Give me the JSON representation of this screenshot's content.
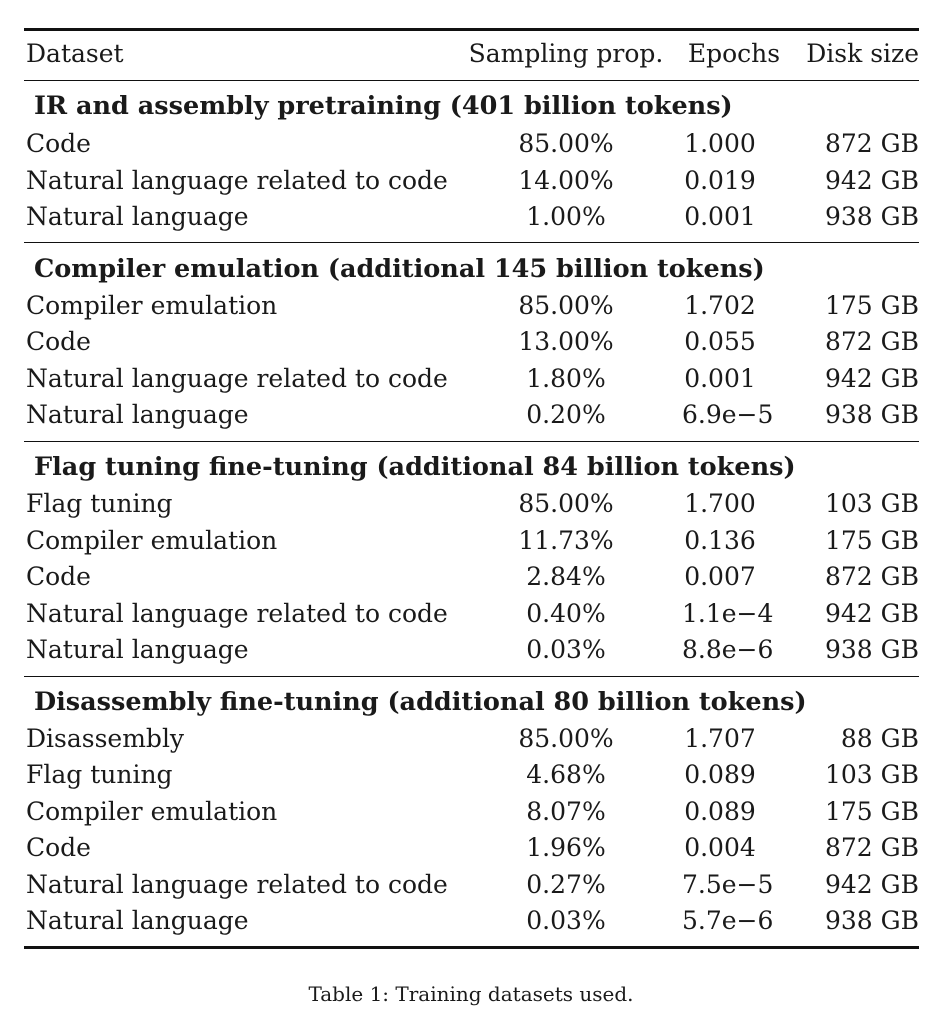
{
  "table": {
    "header": {
      "dataset": "Dataset",
      "sampling": "Sampling prop.",
      "epochs": "Epochs",
      "disk": "Disk size"
    },
    "sections": [
      {
        "title": "IR and assembly pretraining (401 billion tokens)",
        "rows": [
          {
            "dataset": "Code",
            "sampling": "85.00%",
            "epochs": "1.000",
            "disk": "872 GB"
          },
          {
            "dataset": "Natural language related to code",
            "sampling": "14.00%",
            "epochs": "0.019",
            "disk": "942 GB"
          },
          {
            "dataset": "Natural language",
            "sampling": "1.00%",
            "epochs": "0.001",
            "disk": "938 GB"
          }
        ]
      },
      {
        "title": "Compiler emulation (additional 145 billion tokens)",
        "rows": [
          {
            "dataset": "Compiler emulation",
            "sampling": "85.00%",
            "epochs": "1.702",
            "disk": "175 GB"
          },
          {
            "dataset": "Code",
            "sampling": "13.00%",
            "epochs": "0.055",
            "disk": "872 GB"
          },
          {
            "dataset": "Natural language related to code",
            "sampling": "1.80%",
            "epochs": "0.001",
            "disk": "942 GB"
          },
          {
            "dataset": "Natural language",
            "sampling": "0.20%",
            "epochs": "6.9e−5",
            "disk": "938 GB"
          }
        ]
      },
      {
        "title": "Flag tuning fine-tuning (additional 84 billion tokens)",
        "rows": [
          {
            "dataset": "Flag tuning",
            "sampling": "85.00%",
            "epochs": "1.700",
            "disk": "103 GB"
          },
          {
            "dataset": "Compiler emulation",
            "sampling": "11.73%",
            "epochs": "0.136",
            "disk": "175 GB"
          },
          {
            "dataset": "Code",
            "sampling": "2.84%",
            "epochs": "0.007",
            "disk": "872 GB"
          },
          {
            "dataset": "Natural language related to code",
            "sampling": "0.40%",
            "epochs": "1.1e−4",
            "disk": "942 GB"
          },
          {
            "dataset": "Natural language",
            "sampling": "0.03%",
            "epochs": "8.8e−6",
            "disk": "938 GB"
          }
        ]
      },
      {
        "title": "Disassembly fine-tuning (additional 80 billion tokens)",
        "rows": [
          {
            "dataset": "Disassembly",
            "sampling": "85.00%",
            "epochs": "1.707",
            "disk": "88 GB"
          },
          {
            "dataset": "Flag tuning",
            "sampling": "4.68%",
            "epochs": "0.089",
            "disk": "103 GB"
          },
          {
            "dataset": "Compiler emulation",
            "sampling": "8.07%",
            "epochs": "0.089",
            "disk": "175 GB"
          },
          {
            "dataset": "Code",
            "sampling": "1.96%",
            "epochs": "0.004",
            "disk": "872 GB"
          },
          {
            "dataset": "Natural language related to code",
            "sampling": "0.27%",
            "epochs": "7.5e−5",
            "disk": "942 GB"
          },
          {
            "dataset": "Natural language",
            "sampling": "0.03%",
            "epochs": "5.7e−6",
            "disk": "938 GB"
          }
        ]
      }
    ],
    "caption": "Table 1: Training datasets used."
  }
}
